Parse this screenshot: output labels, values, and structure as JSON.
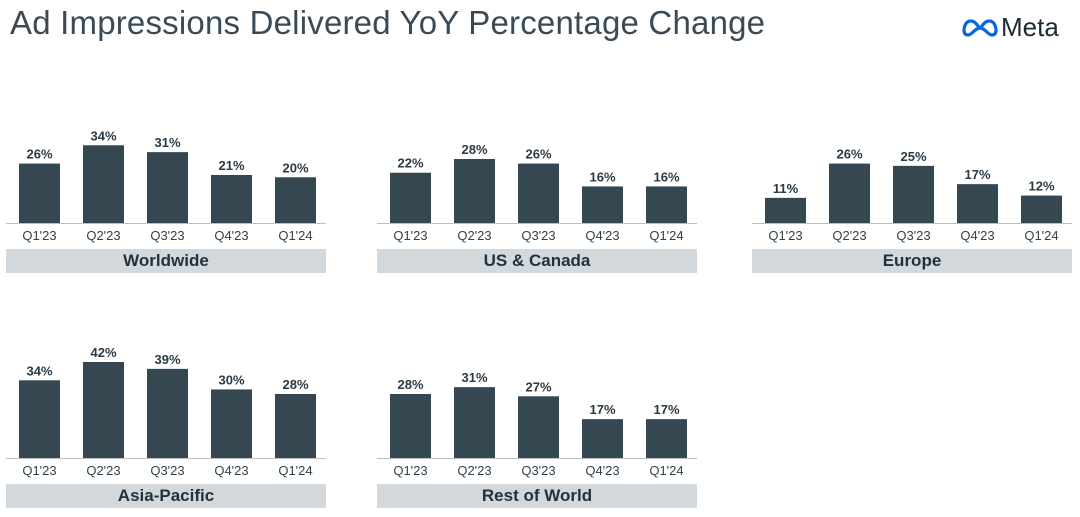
{
  "title": "Ad Impressions Delivered YoY Percentage Change",
  "logo": {
    "icon": "meta-infinity-icon",
    "text": "Meta"
  },
  "colors": {
    "bar": "#354750",
    "band": "#d3d8dd",
    "logo_blue": "#0668e1"
  },
  "chart_data": [
    {
      "type": "bar",
      "title": "Worldwide",
      "categories": [
        "Q1'23",
        "Q2'23",
        "Q3'23",
        "Q4'23",
        "Q1'24"
      ],
      "values": [
        26,
        34,
        31,
        21,
        20
      ],
      "labels": [
        "26%",
        "34%",
        "31%",
        "21%",
        "20%"
      ],
      "ylim": [
        0,
        42
      ]
    },
    {
      "type": "bar",
      "title": "US & Canada",
      "categories": [
        "Q1'23",
        "Q2'23",
        "Q3'23",
        "Q4'23",
        "Q1'24"
      ],
      "values": [
        22,
        28,
        26,
        16,
        16
      ],
      "labels": [
        "22%",
        "28%",
        "26%",
        "16%",
        "16%"
      ],
      "ylim": [
        0,
        42
      ]
    },
    {
      "type": "bar",
      "title": "Europe",
      "categories": [
        "Q1'23",
        "Q2'23",
        "Q3'23",
        "Q4'23",
        "Q1'24"
      ],
      "values": [
        11,
        26,
        25,
        17,
        12
      ],
      "labels": [
        "11%",
        "26%",
        "25%",
        "17%",
        "12%"
      ],
      "ylim": [
        0,
        42
      ]
    },
    {
      "type": "bar",
      "title": "Asia-Pacific",
      "categories": [
        "Q1'23",
        "Q2'23",
        "Q3'23",
        "Q4'23",
        "Q1'24"
      ],
      "values": [
        34,
        42,
        39,
        30,
        28
      ],
      "labels": [
        "34%",
        "42%",
        "39%",
        "30%",
        "28%"
      ],
      "ylim": [
        0,
        42
      ]
    },
    {
      "type": "bar",
      "title": "Rest of World",
      "categories": [
        "Q1'23",
        "Q2'23",
        "Q3'23",
        "Q4'23",
        "Q1'24"
      ],
      "values": [
        28,
        31,
        27,
        17,
        17
      ],
      "labels": [
        "28%",
        "31%",
        "27%",
        "17%",
        "17%"
      ],
      "ylim": [
        0,
        42
      ]
    }
  ]
}
